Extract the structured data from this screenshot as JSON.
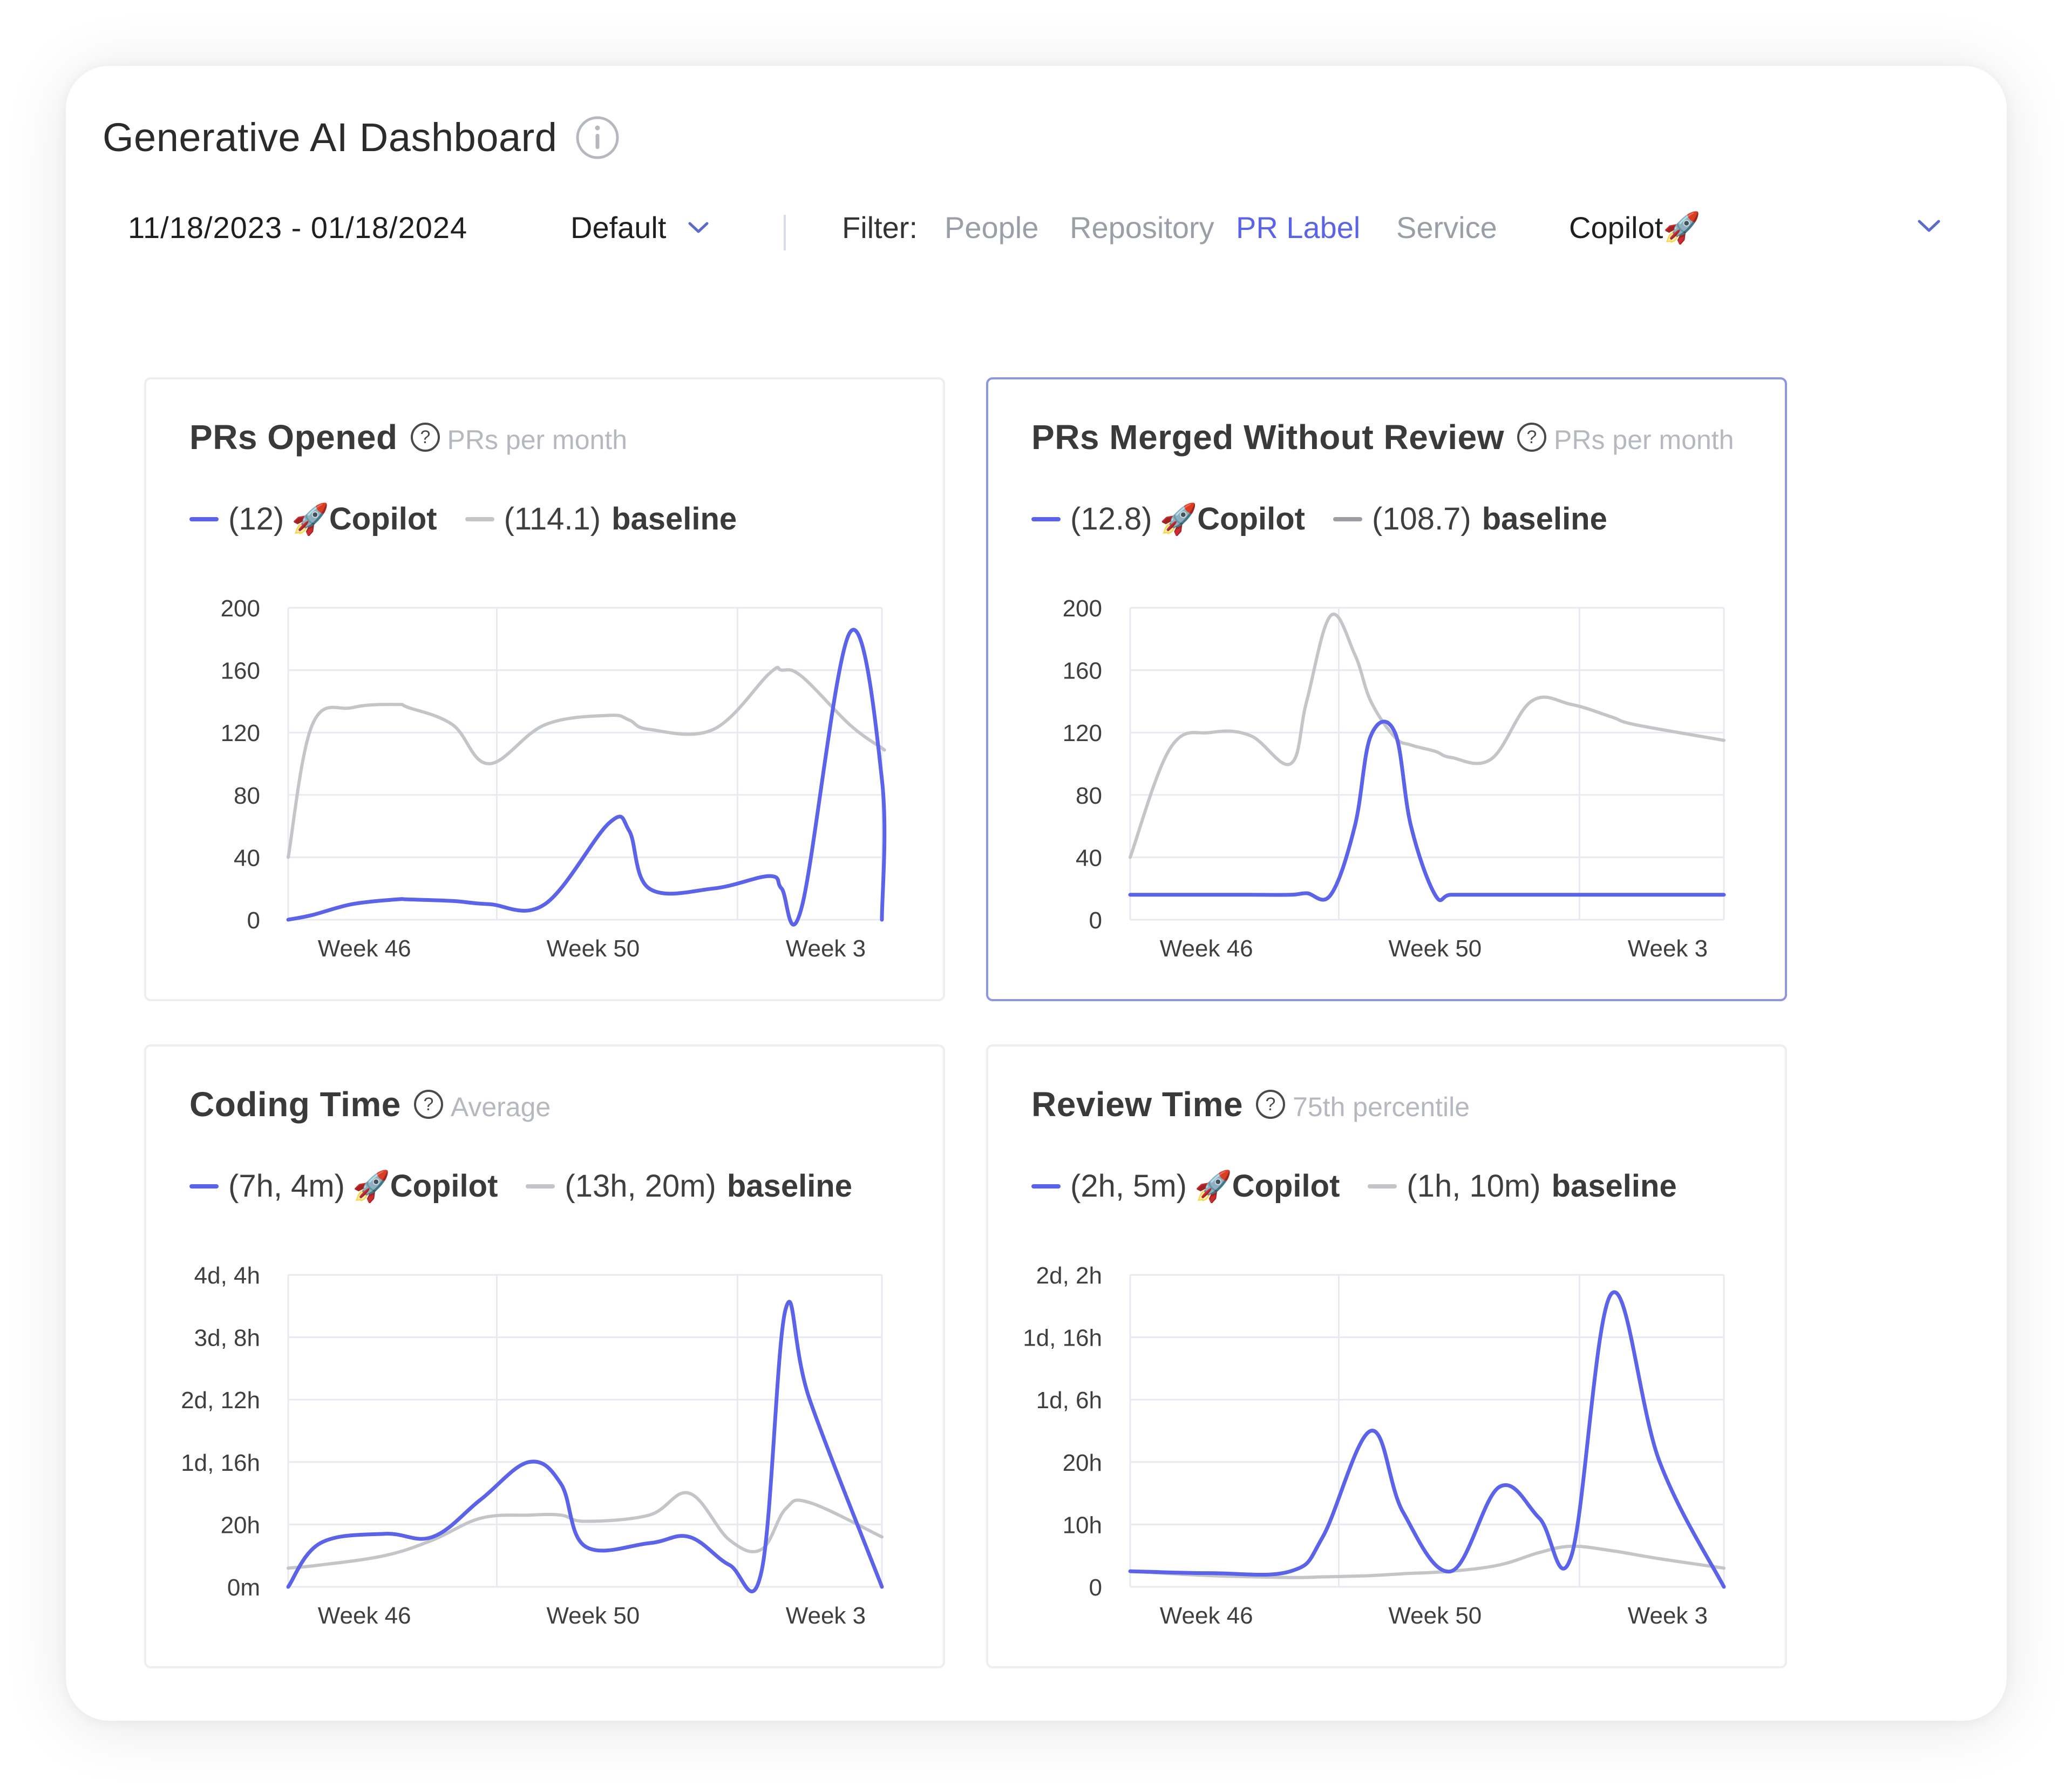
{
  "header": {
    "title": "Generative AI Dashboard"
  },
  "toolbar": {
    "date_range": "11/18/2023 - 01/18/2024",
    "preset": "Default",
    "filter_label": "Filter:",
    "filter_options": [
      "People",
      "Repository",
      "PR Label",
      "Service"
    ],
    "active_filter": "PR Label",
    "selected_label": "Copilot"
  },
  "colors": {
    "copilot": "#5b63e8",
    "baseline": "#c3c5c9",
    "baseline_dark": "#9c9ea3",
    "accent": "#5b63e8"
  },
  "icons": {
    "info": "info-circle-icon",
    "help": "question-circle-icon",
    "chevron": "chevron-down-icon",
    "rocket": "rocket-emoji"
  },
  "charts": [
    {
      "title": "PRs Opened",
      "subtitle": "PRs per month",
      "legend": [
        {
          "value": "(12)",
          "name": "Copilot",
          "icon": "rocket"
        },
        {
          "value": "(114.1)",
          "name": "baseline"
        }
      ],
      "y_ticks": [
        "0",
        "40",
        "80",
        "120",
        "160",
        "200"
      ],
      "x_ticks": [
        "Week 46",
        "Week 50",
        "Week 3"
      ]
    },
    {
      "title": "PRs Merged Without Review",
      "subtitle": "PRs per month",
      "legend": [
        {
          "value": "(12.8)",
          "name": "Copilot",
          "icon": "rocket"
        },
        {
          "value": "(108.7)",
          "name": "baseline"
        }
      ],
      "y_ticks": [
        "0",
        "40",
        "80",
        "120",
        "160",
        "200"
      ],
      "x_ticks": [
        "Week 46",
        "Week 50",
        "Week 3"
      ]
    },
    {
      "title": "Coding Time",
      "subtitle": "Average",
      "legend": [
        {
          "value": "(7h, 4m)",
          "name": "Copilot",
          "icon": "rocket"
        },
        {
          "value": "(13h, 20m)",
          "name": "baseline"
        }
      ],
      "y_ticks": [
        "0m",
        "20h",
        "1d, 16h",
        "2d, 12h",
        "3d, 8h",
        "4d, 4h"
      ],
      "x_ticks": [
        "Week 46",
        "Week 50",
        "Week 3"
      ]
    },
    {
      "title": "Review Time",
      "subtitle": "75th percentile",
      "legend": [
        {
          "value": "(2h, 5m)",
          "name": "Copilot",
          "icon": "rocket"
        },
        {
          "value": "(1h, 10m)",
          "name": "baseline"
        }
      ],
      "y_ticks": [
        "0",
        "10h",
        "20h",
        "1d, 6h",
        "1d, 16h",
        "2d, 2h"
      ],
      "x_ticks": [
        "Week 46",
        "Week 50",
        "Week 3"
      ]
    }
  ],
  "chart_data": [
    {
      "type": "line",
      "title": "PRs Opened",
      "ylim": [
        0,
        200
      ],
      "x": [
        0,
        0.3,
        0.8,
        1.35,
        1.5,
        2.05,
        2.5,
        3.2,
        4.0,
        4.25,
        4.5,
        5.3,
        6.0,
        6.15,
        6.4,
        7.0,
        7.4,
        7.4
      ],
      "x_ticks": [
        "Week 46",
        "Week 50",
        "Week 3"
      ],
      "series": [
        {
          "name": "Copilot",
          "values": [
            0,
            3,
            10,
            13,
            13,
            12,
            10,
            10,
            62,
            57,
            20,
            20,
            28,
            20,
            8,
            184,
            90,
            0
          ]
        },
        {
          "name": "baseline",
          "values": [
            40,
            125,
            136,
            138,
            136,
            125,
            100,
            125,
            131,
            128,
            122,
            122,
            158,
            160,
            156,
            125,
            110,
            110
          ]
        }
      ]
    },
    {
      "type": "line",
      "title": "PRs Merged Without Review",
      "ylim": [
        0,
        200
      ],
      "x": [
        0,
        0.5,
        1.0,
        1.5,
        2.0,
        2.2,
        2.5,
        2.8,
        3.0,
        3.3,
        3.5,
        3.8,
        4.0,
        4.5,
        5.0,
        5.5,
        6.0,
        6.3,
        7.4
      ],
      "x_ticks": [
        "Week 46",
        "Week 50",
        "Week 3"
      ],
      "series": [
        {
          "name": "Copilot",
          "values": [
            16,
            16,
            16,
            16,
            16,
            17,
            16,
            60,
            118,
            120,
            60,
            16,
            16,
            16,
            16,
            16,
            16,
            16,
            16
          ]
        },
        {
          "name": "baseline",
          "values": [
            40,
            110,
            120,
            118,
            100,
            140,
            195,
            170,
            140,
            117,
            112,
            108,
            104,
            103,
            140,
            138,
            130,
            125,
            115
          ]
        }
      ]
    },
    {
      "type": "line",
      "title": "Coding Time",
      "ylim": [
        0,
        100
      ],
      "x": [
        0,
        0.4,
        1.2,
        1.8,
        2.4,
        3.0,
        3.4,
        3.7,
        4.5,
        5.0,
        5.5,
        5.9,
        6.2,
        6.5,
        7.4
      ],
      "x_ticks": [
        "Week 46",
        "Week 50",
        "Week 3"
      ],
      "series": [
        {
          "name": "Copilot",
          "values": [
            0,
            14,
            17,
            16,
            28,
            40,
            33,
            13,
            14,
            16,
            7,
            5,
            89,
            60,
            0
          ]
        },
        {
          "name": "baseline",
          "values": [
            6,
            7,
            10,
            15,
            22,
            23,
            23,
            21,
            23,
            30,
            15,
            12,
            25,
            27,
            16
          ]
        }
      ]
    },
    {
      "type": "line",
      "title": "Review Time",
      "ylim": [
        0,
        50
      ],
      "x": [
        0,
        1.0,
        2.0,
        2.4,
        3.0,
        3.4,
        4.0,
        4.6,
        5.1,
        5.5,
        6.0,
        6.6,
        7.4
      ],
      "x_ticks": [
        "Week 46",
        "Week 50",
        "Week 3"
      ],
      "series": [
        {
          "name": "Copilot",
          "values": [
            2.5,
            2.2,
            2.5,
            8,
            25,
            12,
            2.5,
            16,
            11,
            5,
            47,
            20,
            0
          ]
        },
        {
          "name": "baseline",
          "values": [
            2.5,
            1.8,
            1.5,
            1.6,
            1.8,
            2.1,
            2.5,
            3.5,
            5.5,
            6.5,
            5.8,
            4.5,
            3
          ]
        }
      ]
    }
  ]
}
